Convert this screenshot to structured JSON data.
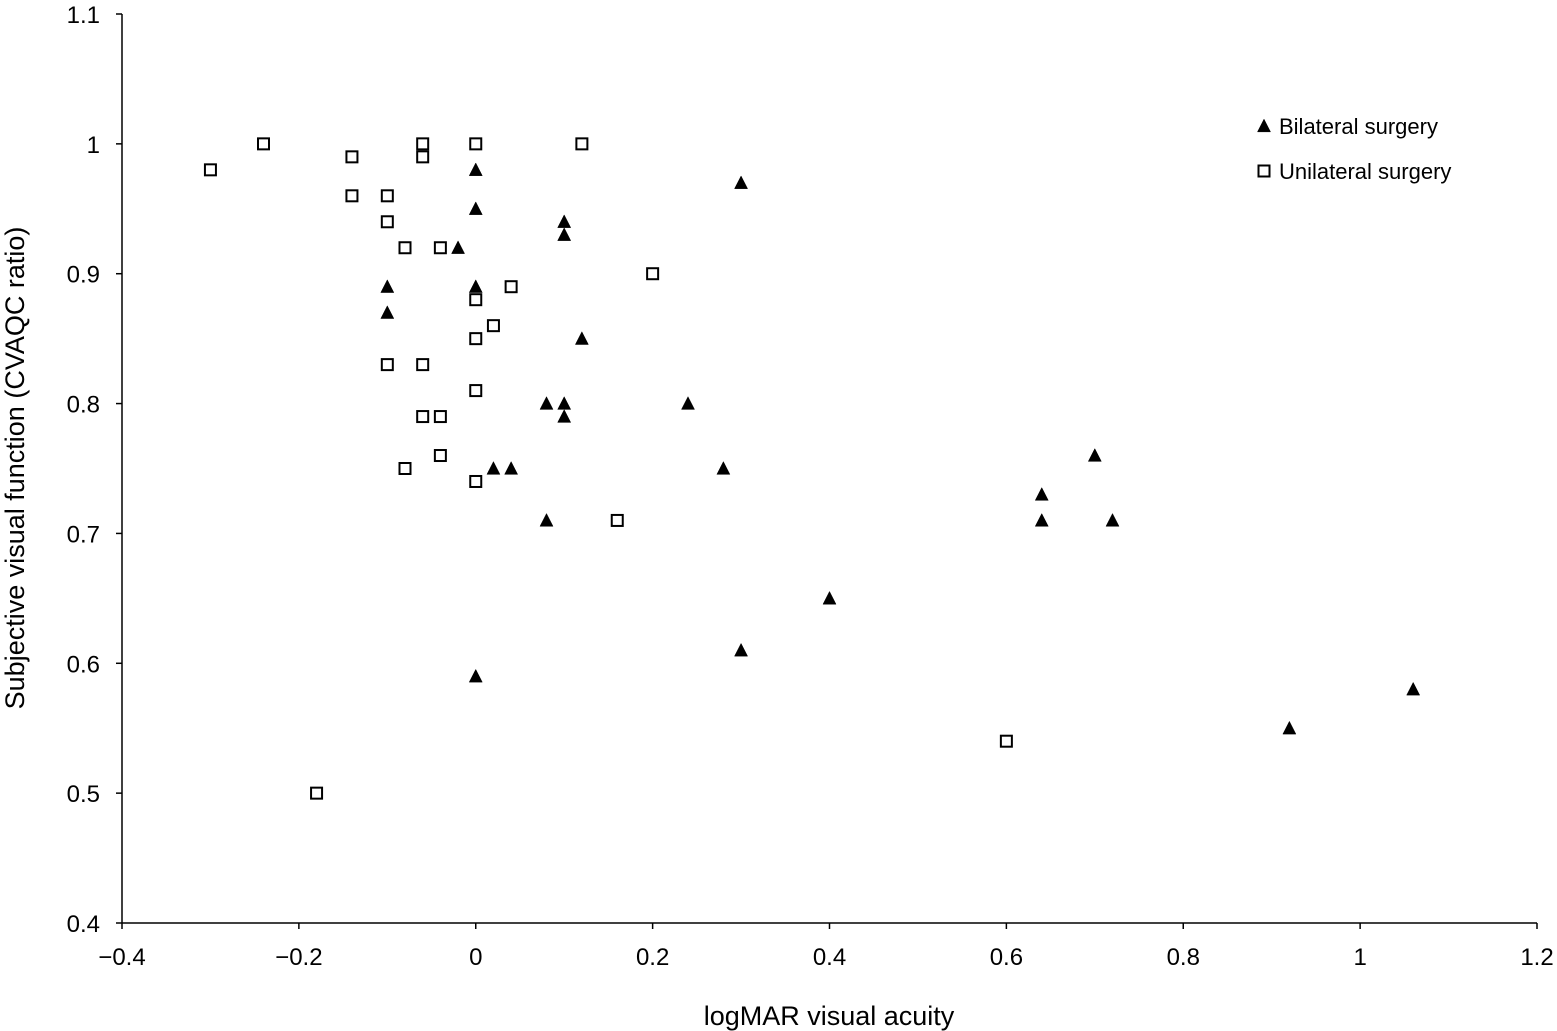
{
  "chart_data": {
    "type": "scatter",
    "xlabel": "logMAR visual acuity",
    "ylabel": "Subjective visual function (CVAQC ratio)",
    "xlim": [
      -0.4,
      1.2
    ],
    "ylim": [
      0.4,
      1.1
    ],
    "x_ticks": [
      -0.4,
      -0.2,
      0,
      0.2,
      0.4,
      0.6,
      0.8,
      1,
      1.2
    ],
    "x_tick_labels": [
      "−0.4",
      "−0.2",
      "0",
      "0.2",
      "0.4",
      "0.6",
      "0.8",
      "1",
      "1.2"
    ],
    "y_ticks": [
      0.4,
      0.5,
      0.6,
      0.7,
      0.8,
      0.9,
      1,
      1.1
    ],
    "y_tick_labels": [
      "0.4",
      "0.5",
      "0.6",
      "0.7",
      "0.8",
      "0.9",
      "1",
      "1.1"
    ],
    "grid": false,
    "legend_position": "top-right",
    "series": [
      {
        "name": "Bilateral surgery",
        "marker": "filled-triangle",
        "color": "#000000",
        "points": [
          [
            0,
            0.98
          ],
          [
            0,
            0.95
          ],
          [
            -0.02,
            0.92
          ],
          [
            -0.1,
            0.89
          ],
          [
            -0.1,
            0.87
          ],
          [
            0,
            0.89
          ],
          [
            0.1,
            0.94
          ],
          [
            0.1,
            0.93
          ],
          [
            0.3,
            0.97
          ],
          [
            0.12,
            0.85
          ],
          [
            0.08,
            0.8
          ],
          [
            0.1,
            0.8
          ],
          [
            0.1,
            0.79
          ],
          [
            0.24,
            0.8
          ],
          [
            0.02,
            0.75
          ],
          [
            0.04,
            0.75
          ],
          [
            0.28,
            0.75
          ],
          [
            0.08,
            0.71
          ],
          [
            0,
            0.59
          ],
          [
            0.3,
            0.61
          ],
          [
            0.4,
            0.65
          ],
          [
            0.7,
            0.76
          ],
          [
            0.64,
            0.73
          ],
          [
            0.64,
            0.71
          ],
          [
            0.72,
            0.71
          ],
          [
            0.92,
            0.55
          ],
          [
            1.06,
            0.58
          ]
        ]
      },
      {
        "name": "Unilateral surgery",
        "marker": "open-square",
        "color": "#000000",
        "points": [
          [
            -0.3,
            0.98
          ],
          [
            -0.24,
            1.0
          ],
          [
            -0.14,
            0.99
          ],
          [
            -0.14,
            0.96
          ],
          [
            -0.06,
            1.0
          ],
          [
            -0.06,
            0.99
          ],
          [
            0,
            1.0
          ],
          [
            0.12,
            1.0
          ],
          [
            -0.1,
            0.96
          ],
          [
            -0.1,
            0.94
          ],
          [
            -0.08,
            0.92
          ],
          [
            -0.04,
            0.92
          ],
          [
            0.2,
            0.9
          ],
          [
            0.04,
            0.89
          ],
          [
            0,
            0.88
          ],
          [
            0.02,
            0.86
          ],
          [
            0,
            0.85
          ],
          [
            -0.1,
            0.83
          ],
          [
            -0.06,
            0.83
          ],
          [
            0,
            0.81
          ],
          [
            -0.06,
            0.79
          ],
          [
            -0.04,
            0.79
          ],
          [
            -0.04,
            0.76
          ],
          [
            -0.08,
            0.75
          ],
          [
            0,
            0.74
          ],
          [
            0.16,
            0.71
          ],
          [
            0.6,
            0.54
          ],
          [
            -0.18,
            0.5
          ]
        ]
      }
    ]
  }
}
